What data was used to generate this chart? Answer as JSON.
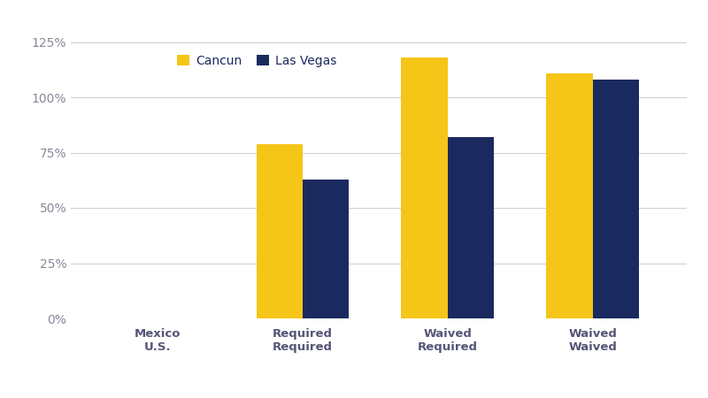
{
  "categories": [
    "Required\nRequired",
    "Waived\nRequired",
    "Waived\nWaived"
  ],
  "x_label_first": "Mexico\nU.S.",
  "cancun_values": [
    0.79,
    1.18,
    1.11
  ],
  "lasvegas_values": [
    0.63,
    0.82,
    1.08
  ],
  "cancun_color": "#F5C518",
  "lasvegas_color": "#1B2A5E",
  "legend_labels": [
    "Cancun",
    "Las Vegas"
  ],
  "ylim": [
    0,
    1.35
  ],
  "yticks": [
    0,
    0.25,
    0.5,
    0.75,
    1.0,
    1.25
  ],
  "ytick_labels": [
    "0%",
    "25%",
    "50%",
    "75%",
    "100%",
    "125%"
  ],
  "bar_width": 0.32,
  "background_color": "#ffffff",
  "grid_color": "#cccccc",
  "ytick_color": "#888899",
  "xtick_color": "#555577",
  "legend_text_color": "#1B2A5E"
}
